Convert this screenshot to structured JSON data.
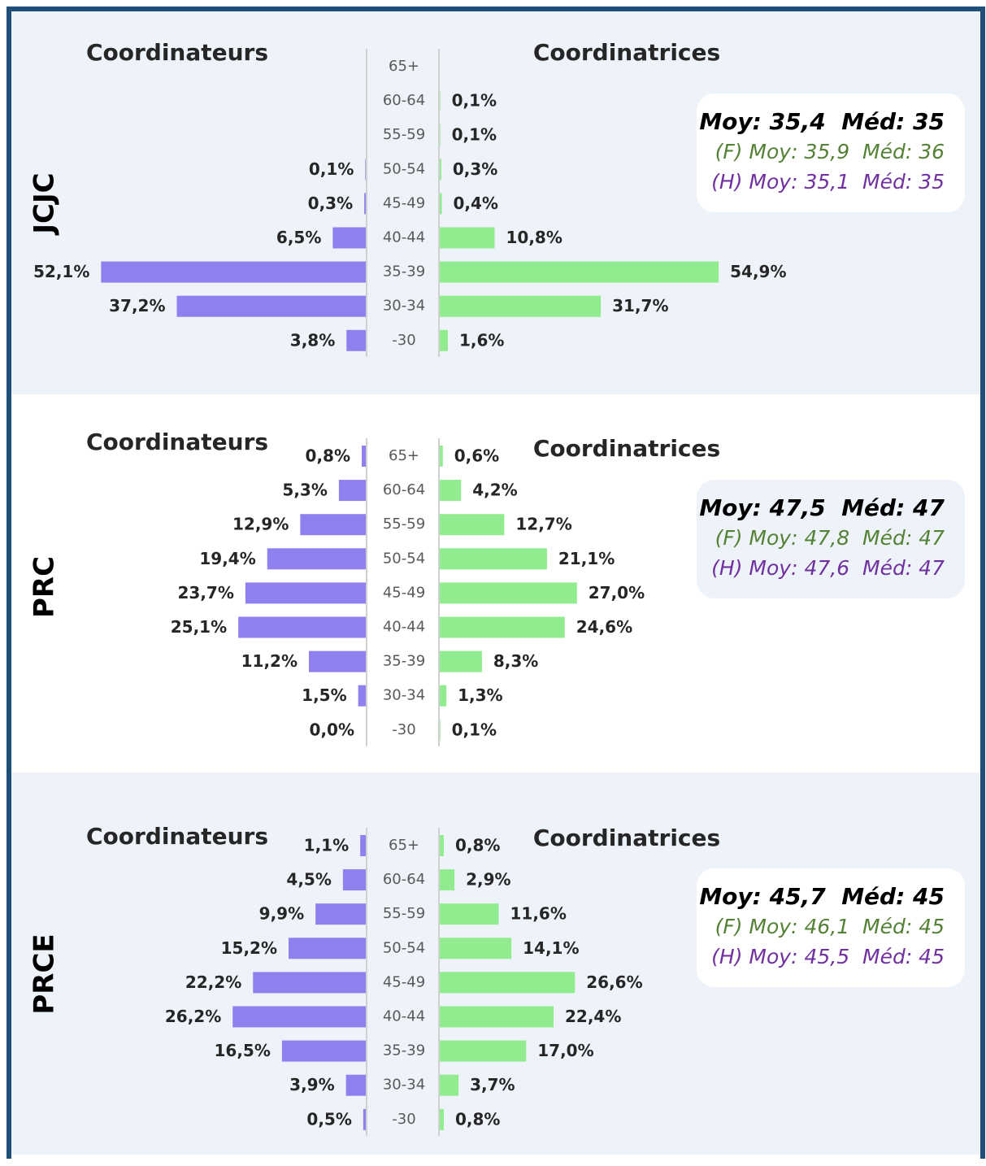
{
  "chart_data": [
    {
      "type": "pyramid",
      "title": "JCJC",
      "categories": [
        "65+",
        "60-64",
        "55-59",
        "50-54",
        "45-49",
        "40-44",
        "35-39",
        "30-34",
        "-30"
      ],
      "series": [
        {
          "name": "Coordinateurs",
          "color": "#8f80ef",
          "values": [
            null,
            null,
            null,
            0.1,
            0.3,
            6.5,
            52.1,
            37.2,
            3.8
          ],
          "value_labels": [
            null,
            null,
            null,
            "0,1%",
            "0,3%",
            "6,5%",
            "52,1%",
            "37,2%",
            "3,8%"
          ]
        },
        {
          "name": "Coordinatrices",
          "color": "#90ec8e",
          "values": [
            null,
            0.1,
            0.1,
            0.3,
            0.4,
            10.8,
            54.9,
            31.7,
            1.6
          ],
          "value_labels": [
            null,
            "0,1%",
            "0,1%",
            "0,3%",
            "0,4%",
            "10,8%",
            "54,9%",
            "31,7%",
            "1,6%"
          ]
        }
      ],
      "stats": [
        "Moy: 35,4  Méd: 35",
        "(F) Moy: 35,9  Méd: 36",
        "(H) Moy: 35,1  Méd: 35"
      ]
    },
    {
      "type": "pyramid",
      "title": "PRC",
      "categories": [
        "65+",
        "60-64",
        "55-59",
        "50-54",
        "45-49",
        "40-44",
        "35-39",
        "30-34",
        "-30"
      ],
      "series": [
        {
          "name": "Coordinateurs",
          "color": "#8f80ef",
          "values": [
            0.8,
            5.3,
            12.9,
            19.4,
            23.7,
            25.1,
            11.2,
            1.5,
            0.0
          ],
          "value_labels": [
            "0,8%",
            "5,3%",
            "12,9%",
            "19,4%",
            "23,7%",
            "25,1%",
            "11,2%",
            "1,5%",
            "0,0%"
          ]
        },
        {
          "name": "Coordinatrices",
          "color": "#90ec8e",
          "values": [
            0.6,
            4.2,
            12.7,
            21.1,
            27.0,
            24.6,
            8.3,
            1.3,
            0.1
          ],
          "value_labels": [
            "0,6%",
            "4,2%",
            "12,7%",
            "21,1%",
            "27,0%",
            "24,6%",
            "8,3%",
            "1,3%",
            "0,1%"
          ]
        }
      ],
      "stats": [
        "Moy: 47,5  Méd: 47",
        "(F) Moy: 47,8  Méd: 47",
        "(H) Moy: 47,6  Méd: 47"
      ]
    },
    {
      "type": "pyramid",
      "title": "PRCE",
      "categories": [
        "65+",
        "60-64",
        "55-59",
        "50-54",
        "45-49",
        "40-44",
        "35-39",
        "30-34",
        "-30"
      ],
      "series": [
        {
          "name": "Coordinateurs",
          "color": "#8f80ef",
          "values": [
            1.1,
            4.5,
            9.9,
            15.2,
            22.2,
            26.2,
            16.5,
            3.9,
            0.5
          ],
          "value_labels": [
            "1,1%",
            "4,5%",
            "9,9%",
            "15,2%",
            "22,2%",
            "26,2%",
            "16,5%",
            "3,9%",
            "0,5%"
          ]
        },
        {
          "name": "Coordinatrices",
          "color": "#90ec8e",
          "values": [
            0.8,
            2.9,
            11.6,
            14.1,
            26.6,
            22.4,
            17.0,
            3.7,
            0.8
          ],
          "value_labels": [
            "0,8%",
            "2,9%",
            "11,6%",
            "14,1%",
            "26,6%",
            "22,4%",
            "17,0%",
            "3,7%",
            "0,8%"
          ]
        }
      ],
      "stats": [
        "Moy: 45,7  Méd: 45",
        "(F) Moy: 46,1  Méd: 45",
        "(H) Moy: 45,5  Méd: 45"
      ]
    }
  ]
}
